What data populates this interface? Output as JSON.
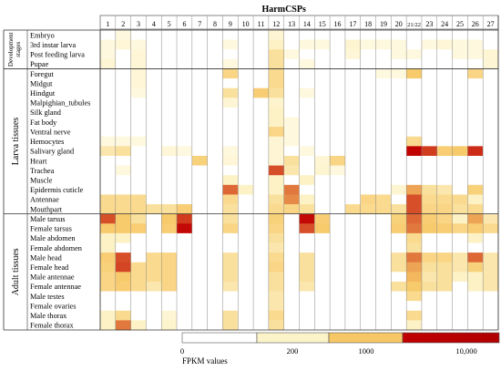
{
  "chart_data": {
    "type": "heatmap",
    "title": "HarmCSPs",
    "columns": [
      "1",
      "2",
      "3",
      "4",
      "5",
      "6",
      "7",
      "8",
      "9",
      "10",
      "11",
      "12",
      "13",
      "14",
      "15",
      "16",
      "17",
      "18",
      "19",
      "20",
      "21/22",
      "23",
      "24",
      "25",
      "26",
      "27"
    ],
    "groups": [
      {
        "label": "Development stages",
        "rows": [
          "Embryo",
          "3rd instar larva",
          "Post feeding larva",
          "Pupae"
        ]
      },
      {
        "label": "Larva tissues",
        "rows": [
          "Foregut",
          "Midgut",
          "Hindgut",
          "Malpighian_tubules",
          "Silk gland",
          "Fat body",
          "Ventral nerve",
          "Hemocytes",
          "Salivary gland",
          "Heart",
          "Trachea",
          "Muscle",
          "Epidermis cuticle",
          "Antennae",
          "Mouthpart"
        ]
      },
      {
        "label": "Adult tissues",
        "rows": [
          "Male tarsus",
          "Female tarsus",
          "Male abdomen",
          "Female abdomen",
          "Male head",
          "Female head",
          "Male antennae",
          "Female antennae",
          "Male testes",
          "Female ovaries",
          "Male thorax",
          "Female thorax"
        ]
      }
    ],
    "values": [
      [
        0,
        20,
        0,
        0,
        0,
        0,
        0,
        0,
        0,
        0,
        0,
        60,
        0,
        0,
        0,
        0,
        0,
        0,
        0,
        0,
        0,
        0,
        0,
        0,
        0,
        0
      ],
      [
        20,
        40,
        20,
        0,
        0,
        0,
        0,
        0,
        20,
        0,
        0,
        200,
        0,
        20,
        20,
        0,
        80,
        20,
        20,
        20,
        0,
        20,
        40,
        20,
        20,
        0
      ],
      [
        20,
        0,
        40,
        0,
        0,
        0,
        0,
        0,
        0,
        0,
        0,
        400,
        20,
        0,
        0,
        0,
        40,
        0,
        0,
        20,
        20,
        0,
        0,
        20,
        20,
        60
      ],
      [
        60,
        0,
        60,
        0,
        0,
        0,
        0,
        0,
        20,
        0,
        0,
        400,
        0,
        20,
        0,
        0,
        0,
        0,
        0,
        0,
        0,
        0,
        0,
        0,
        0,
        60
      ],
      [
        0,
        0,
        40,
        0,
        0,
        0,
        0,
        0,
        600,
        0,
        0,
        500,
        0,
        0,
        0,
        0,
        0,
        0,
        20,
        20,
        900,
        0,
        0,
        0,
        600,
        0
      ],
      [
        0,
        0,
        40,
        0,
        0,
        0,
        0,
        0,
        0,
        0,
        0,
        500,
        0,
        0,
        0,
        0,
        0,
        0,
        0,
        0,
        0,
        0,
        0,
        0,
        0,
        0
      ],
      [
        0,
        0,
        20,
        0,
        0,
        0,
        0,
        0,
        400,
        0,
        800,
        400,
        0,
        20,
        0,
        0,
        0,
        0,
        0,
        0,
        0,
        0,
        0,
        0,
        0,
        0
      ],
      [
        0,
        0,
        0,
        0,
        0,
        0,
        0,
        0,
        60,
        0,
        0,
        100,
        0,
        0,
        0,
        0,
        0,
        0,
        0,
        0,
        0,
        0,
        0,
        0,
        0,
        0
      ],
      [
        0,
        0,
        0,
        0,
        0,
        0,
        0,
        0,
        0,
        0,
        0,
        200,
        0,
        0,
        0,
        0,
        0,
        0,
        0,
        0,
        0,
        0,
        0,
        0,
        0,
        0
      ],
      [
        0,
        0,
        0,
        0,
        0,
        0,
        0,
        0,
        0,
        0,
        0,
        200,
        20,
        0,
        0,
        0,
        0,
        0,
        0,
        0,
        0,
        0,
        0,
        0,
        0,
        0
      ],
      [
        0,
        0,
        0,
        0,
        0,
        0,
        0,
        0,
        0,
        0,
        0,
        600,
        20,
        0,
        0,
        0,
        0,
        0,
        0,
        0,
        0,
        0,
        0,
        0,
        0,
        0
      ],
      [
        20,
        20,
        20,
        0,
        0,
        0,
        0,
        0,
        0,
        0,
        0,
        60,
        20,
        0,
        0,
        0,
        0,
        0,
        0,
        0,
        500,
        0,
        0,
        0,
        0,
        0
      ],
      [
        300,
        400,
        0,
        0,
        40,
        20,
        0,
        0,
        20,
        0,
        0,
        60,
        0,
        20,
        0,
        0,
        0,
        0,
        0,
        0,
        9500,
        5000,
        800,
        900,
        6000,
        0
      ],
      [
        0,
        0,
        0,
        0,
        0,
        0,
        700,
        0,
        40,
        0,
        0,
        60,
        400,
        0,
        60,
        600,
        0,
        0,
        0,
        0,
        0,
        0,
        0,
        0,
        0,
        0
      ],
      [
        0,
        20,
        0,
        0,
        0,
        0,
        0,
        0,
        0,
        0,
        0,
        4000,
        300,
        0,
        80,
        20,
        0,
        0,
        0,
        0,
        0,
        0,
        0,
        0,
        0,
        0
      ],
      [
        0,
        0,
        0,
        0,
        0,
        0,
        0,
        0,
        200,
        0,
        0,
        200,
        0,
        200,
        0,
        0,
        0,
        0,
        0,
        0,
        0,
        0,
        0,
        0,
        0,
        0
      ],
      [
        0,
        0,
        0,
        0,
        0,
        0,
        0,
        0,
        3000,
        200,
        0,
        200,
        2500,
        0,
        0,
        0,
        0,
        0,
        0,
        80,
        1500,
        400,
        300,
        0,
        700,
        0
      ],
      [
        500,
        500,
        500,
        0,
        0,
        0,
        0,
        0,
        500,
        0,
        0,
        400,
        2000,
        200,
        0,
        0,
        0,
        600,
        500,
        0,
        4000,
        500,
        500,
        500,
        200,
        0
      ],
      [
        500,
        500,
        500,
        400,
        400,
        800,
        0,
        0,
        400,
        0,
        0,
        500,
        600,
        400,
        0,
        0,
        500,
        500,
        500,
        400,
        4000,
        600,
        600,
        400,
        500,
        0
      ],
      [
        4000,
        900,
        400,
        0,
        900,
        5000,
        0,
        0,
        400,
        0,
        0,
        700,
        0,
        9000,
        800,
        0,
        0,
        0,
        0,
        700,
        3000,
        800,
        600,
        200,
        1500,
        300
      ],
      [
        900,
        900,
        800,
        0,
        800,
        9000,
        0,
        0,
        600,
        0,
        0,
        600,
        0,
        4000,
        900,
        0,
        0,
        0,
        0,
        800,
        2500,
        900,
        800,
        600,
        800,
        500
      ],
      [
        200,
        200,
        0,
        0,
        0,
        0,
        0,
        0,
        0,
        0,
        0,
        400,
        0,
        0,
        0,
        0,
        0,
        0,
        0,
        0,
        500,
        0,
        0,
        0,
        200,
        0
      ],
      [
        200,
        0,
        0,
        0,
        0,
        0,
        0,
        0,
        0,
        0,
        0,
        300,
        0,
        0,
        0,
        0,
        0,
        0,
        0,
        0,
        400,
        0,
        0,
        0,
        0,
        0
      ],
      [
        800,
        4000,
        0,
        500,
        600,
        0,
        0,
        0,
        400,
        0,
        0,
        500,
        0,
        400,
        0,
        0,
        0,
        0,
        0,
        400,
        2500,
        600,
        600,
        300,
        3000,
        300
      ],
      [
        700,
        4500,
        500,
        500,
        600,
        0,
        0,
        0,
        400,
        0,
        0,
        600,
        0,
        400,
        0,
        0,
        0,
        0,
        0,
        400,
        1500,
        400,
        400,
        300,
        700,
        300
      ],
      [
        600,
        900,
        500,
        500,
        600,
        0,
        0,
        0,
        400,
        0,
        0,
        400,
        0,
        400,
        0,
        0,
        0,
        0,
        0,
        0,
        1200,
        300,
        400,
        200,
        200,
        300
      ],
      [
        600,
        800,
        500,
        300,
        600,
        0,
        0,
        0,
        300,
        0,
        0,
        400,
        0,
        300,
        0,
        0,
        0,
        0,
        0,
        400,
        900,
        400,
        400,
        0,
        200,
        300
      ],
      [
        0,
        0,
        0,
        0,
        0,
        0,
        0,
        0,
        0,
        0,
        0,
        300,
        0,
        0,
        0,
        0,
        0,
        0,
        0,
        0,
        500,
        0,
        0,
        0,
        0,
        0
      ],
      [
        0,
        0,
        0,
        0,
        0,
        0,
        0,
        0,
        0,
        0,
        0,
        300,
        0,
        0,
        0,
        0,
        0,
        0,
        0,
        0,
        0,
        0,
        0,
        0,
        0,
        0
      ],
      [
        200,
        500,
        0,
        0,
        60,
        0,
        0,
        0,
        400,
        0,
        0,
        500,
        0,
        0,
        0,
        0,
        0,
        0,
        0,
        0,
        500,
        0,
        0,
        0,
        0,
        0
      ],
      [
        200,
        2500,
        200,
        0,
        100,
        0,
        0,
        0,
        400,
        0,
        0,
        400,
        0,
        0,
        0,
        0,
        0,
        0,
        0,
        0,
        200,
        0,
        0,
        0,
        0,
        0
      ]
    ],
    "legend": {
      "label": "FPKM values",
      "ticks": [
        "0",
        "200",
        "1000",
        "10,000"
      ],
      "stops": [
        0,
        200,
        1000,
        10000
      ],
      "colors": [
        "#ffffff",
        "#fdf2c6",
        "#f7c766",
        "#c00000"
      ]
    }
  }
}
